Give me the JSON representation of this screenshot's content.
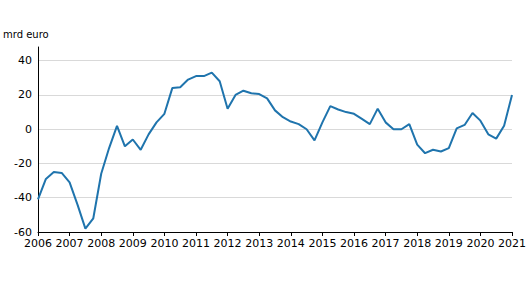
{
  "chart_data": {
    "type": "line",
    "ylabel": "mrd euro",
    "categories": [
      "2006",
      null,
      null,
      null,
      "2007",
      null,
      null,
      null,
      "2008",
      null,
      null,
      null,
      "2009",
      null,
      null,
      null,
      "2010",
      null,
      null,
      null,
      "2011",
      null,
      null,
      null,
      "2012",
      null,
      null,
      null,
      "2013",
      null,
      null,
      null,
      "2014",
      null,
      null,
      null,
      "2015",
      null,
      null,
      null,
      "2016",
      null,
      null,
      null,
      "2017",
      null,
      null,
      null,
      "2018",
      null,
      null,
      null,
      "2019",
      null,
      null,
      null,
      "2020",
      null,
      null,
      null,
      "2021"
    ],
    "values": [
      -41,
      -29,
      -25,
      -25.5,
      -31,
      -44,
      -58,
      -52,
      -26,
      -11,
      2,
      -10,
      -6,
      -12,
      -3,
      4,
      9,
      24,
      24.5,
      29,
      31,
      31,
      33,
      28,
      12,
      20,
      22.5,
      21,
      20.5,
      18,
      11,
      7,
      4.5,
      3,
      0,
      -6.5,
      4,
      13.5,
      11.5,
      10,
      9,
      6,
      3,
      12,
      4,
      0,
      0,
      3,
      -9,
      -14,
      -12,
      -13,
      -11,
      0.5,
      2.5,
      9.5,
      5,
      -3,
      -5.5,
      2,
      20
    ],
    "color": "#1f74ad",
    "ylim": [
      -60,
      48
    ],
    "yticks": [
      -60,
      -40,
      -20,
      0,
      20,
      40
    ],
    "grid": true
  }
}
